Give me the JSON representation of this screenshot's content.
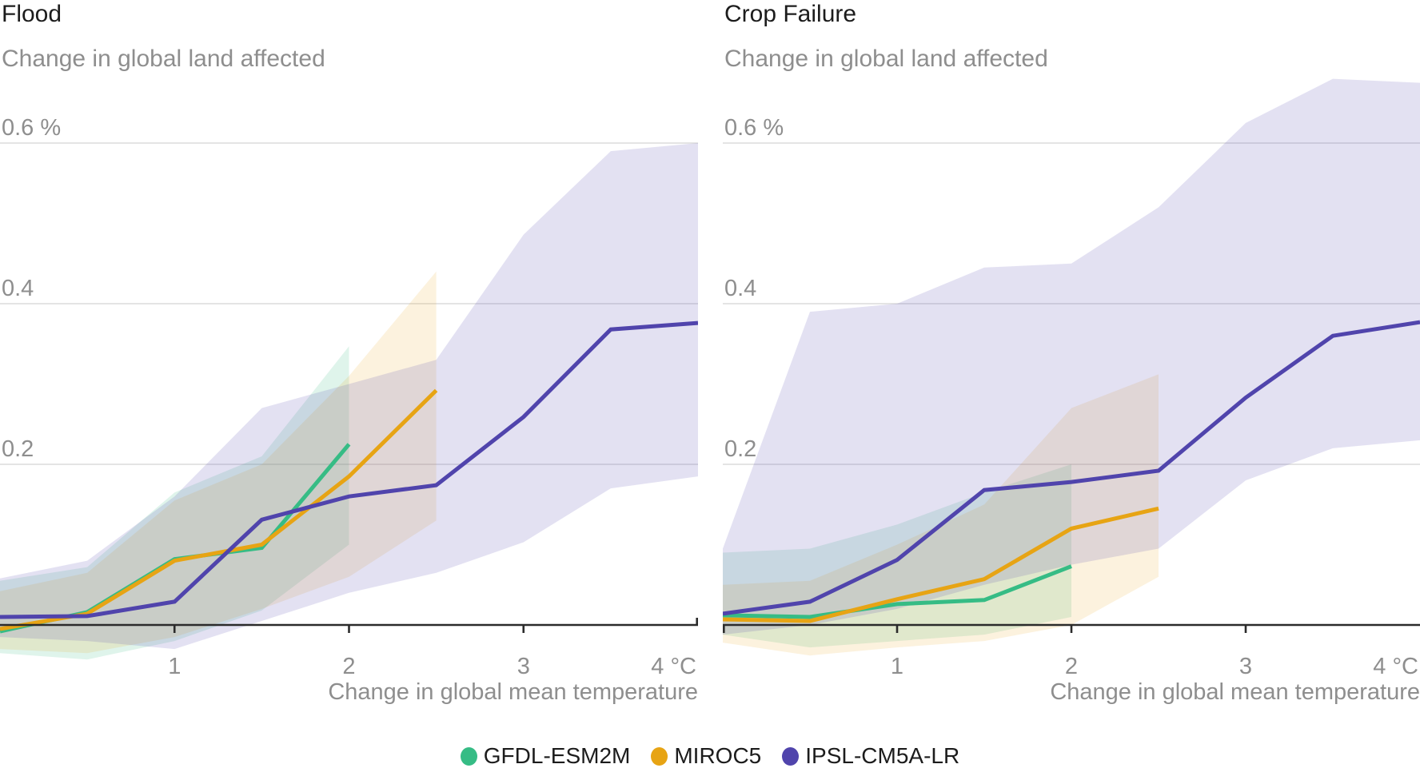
{
  "legend": {
    "items": [
      {
        "label": "GFDL-ESM2M",
        "color": "#36bc85"
      },
      {
        "label": "MIROC5",
        "color": "#e7a414"
      },
      {
        "label": "IPSL-CM5A-LR",
        "color": "#5044ac"
      }
    ]
  },
  "style": {
    "axis_color": "#2b2b2b",
    "grid_color": "#dcdcdc",
    "band_opacity": {
      "GFDL-ESM2M": 0.16,
      "MIROC5": 0.14,
      "IPSL-CM5A-LR": 0.16
    }
  },
  "chart_data": [
    {
      "type": "line",
      "title": "Flood",
      "subtitle": "Change in global land affected",
      "xlabel": "Change in global mean temperature",
      "x_range": [
        0,
        4
      ],
      "ylim": [
        -0.06,
        0.7
      ],
      "grid": true,
      "legend_position": "bottom-center",
      "y_gridlines": [
        {
          "value": 0.6,
          "label": "0.6 %"
        },
        {
          "value": 0.4,
          "label": "0.4"
        },
        {
          "value": 0.2,
          "label": "0.2"
        }
      ],
      "x_tick_labels": [
        {
          "value": 1,
          "label": "1",
          "anchor": "middle"
        },
        {
          "value": 2,
          "label": "2",
          "anchor": "middle"
        },
        {
          "value": 3,
          "label": "3",
          "anchor": "middle"
        },
        {
          "value": 4,
          "label": "4 °C",
          "anchor": "end"
        }
      ],
      "series": [
        {
          "name": "GFDL-ESM2M",
          "color": "#36bc85",
          "x": [
            0,
            0.5,
            1,
            1.5,
            2
          ],
          "y": [
            -0.008,
            0.016,
            0.082,
            0.096,
            0.225
          ],
          "band_upper": [
            0.055,
            0.072,
            0.165,
            0.21,
            0.347
          ],
          "band_lower": [
            -0.035,
            -0.043,
            -0.02,
            0.018,
            0.1
          ]
        },
        {
          "name": "MIROC5",
          "color": "#e7a414",
          "x": [
            0,
            0.5,
            1,
            1.5,
            2,
            2.5
          ],
          "y": [
            -0.005,
            0.014,
            0.08,
            0.1,
            0.185,
            0.292
          ],
          "band_upper": [
            0.042,
            0.065,
            0.155,
            0.2,
            0.31,
            0.44
          ],
          "band_lower": [
            -0.03,
            -0.035,
            -0.015,
            0.02,
            0.06,
            0.13
          ]
        },
        {
          "name": "IPSL-CM5A-LR",
          "color": "#5044ac",
          "x": [
            0,
            0.5,
            1,
            1.5,
            2,
            2.5,
            3,
            3.5,
            4
          ],
          "y": [
            0.01,
            0.011,
            0.029,
            0.131,
            0.16,
            0.174,
            0.259,
            0.368,
            0.376
          ],
          "band_upper": [
            0.058,
            0.08,
            0.16,
            0.27,
            0.3,
            0.33,
            0.486,
            0.59,
            0.6
          ],
          "band_lower": [
            -0.015,
            -0.02,
            -0.03,
            0.005,
            0.04,
            0.065,
            0.103,
            0.17,
            0.185
          ]
        }
      ]
    },
    {
      "type": "line",
      "title": "Crop Failure",
      "subtitle": "Change in global land affected",
      "xlabel": "Change in global mean temperature",
      "x_range": [
        0,
        4
      ],
      "ylim": [
        -0.06,
        0.7
      ],
      "grid": true,
      "legend_position": "bottom-center",
      "y_gridlines": [
        {
          "value": 0.6,
          "label": "0.6 %"
        },
        {
          "value": 0.4,
          "label": "0.4"
        },
        {
          "value": 0.2,
          "label": "0.2"
        }
      ],
      "x_tick_labels": [
        {
          "value": 1,
          "label": "1",
          "anchor": "middle"
        },
        {
          "value": 2,
          "label": "2",
          "anchor": "middle"
        },
        {
          "value": 3,
          "label": "3",
          "anchor": "middle"
        },
        {
          "value": 4,
          "label": "4 °C",
          "anchor": "end"
        }
      ],
      "series": [
        {
          "name": "GFDL-ESM2M",
          "color": "#36bc85",
          "x": [
            0,
            0.5,
            1,
            1.5,
            2
          ],
          "y": [
            0.012,
            0.01,
            0.026,
            0.031,
            0.073
          ],
          "band_upper": [
            0.09,
            0.095,
            0.125,
            0.165,
            0.2
          ],
          "band_lower": [
            -0.012,
            -0.028,
            -0.02,
            -0.012,
            0.01
          ]
        },
        {
          "name": "MIROC5",
          "color": "#e7a414",
          "x": [
            0,
            0.5,
            1,
            1.5,
            2,
            2.5
          ],
          "y": [
            0.007,
            0.005,
            0.032,
            0.057,
            0.12,
            0.145
          ],
          "band_upper": [
            0.05,
            0.055,
            0.1,
            0.15,
            0.27,
            0.312
          ],
          "band_lower": [
            -0.022,
            -0.038,
            -0.028,
            -0.02,
            0.0,
            0.06
          ]
        },
        {
          "name": "IPSL-CM5A-LR",
          "color": "#5044ac",
          "x": [
            0,
            0.5,
            1,
            1.5,
            2,
            2.5,
            3,
            3.5,
            4
          ],
          "y": [
            0.014,
            0.029,
            0.081,
            0.168,
            0.178,
            0.192,
            0.283,
            0.36,
            0.377
          ],
          "band_upper": [
            0.095,
            0.39,
            0.4,
            0.445,
            0.45,
            0.52,
            0.625,
            0.68,
            0.675
          ],
          "band_lower": [
            -0.012,
            0.0,
            0.02,
            0.05,
            0.075,
            0.095,
            0.18,
            0.22,
            0.23
          ]
        }
      ]
    }
  ]
}
